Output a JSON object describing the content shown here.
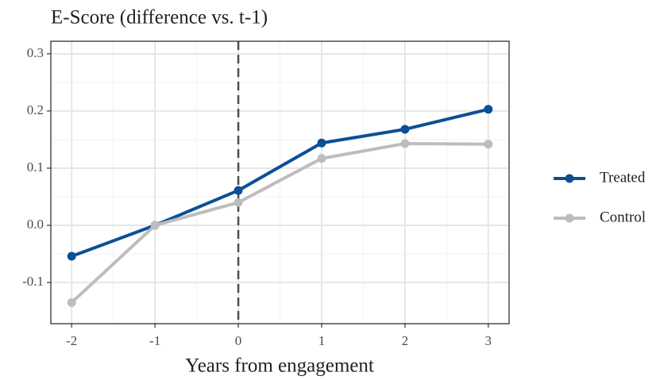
{
  "chart_data": {
    "type": "line",
    "title": "E-Score (difference vs. t-1)",
    "x_label": "Years from engagement",
    "x": [
      -2,
      -1,
      0,
      1,
      2,
      3
    ],
    "series": [
      {
        "name": "Treated",
        "color": "#0b4f96",
        "values": [
          -0.054,
          0,
          0.061,
          0.144,
          0.168,
          0.203
        ]
      },
      {
        "name": "Control",
        "color": "#bdbdbd",
        "values": [
          -0.135,
          0,
          0.04,
          0.117,
          0.143,
          0.142
        ]
      }
    ],
    "xlim": [
      -2.25,
      3.25
    ],
    "xticks": [
      -2,
      -1,
      0,
      1,
      2,
      3
    ],
    "ylim": [
      -0.172,
      0.322
    ],
    "yticks": [
      -0.1,
      {
        "value": 0,
        "label": "0.0"
      },
      0.1,
      0.2,
      0.3
    ],
    "vline": 0,
    "grid": true,
    "legend": "right"
  }
}
